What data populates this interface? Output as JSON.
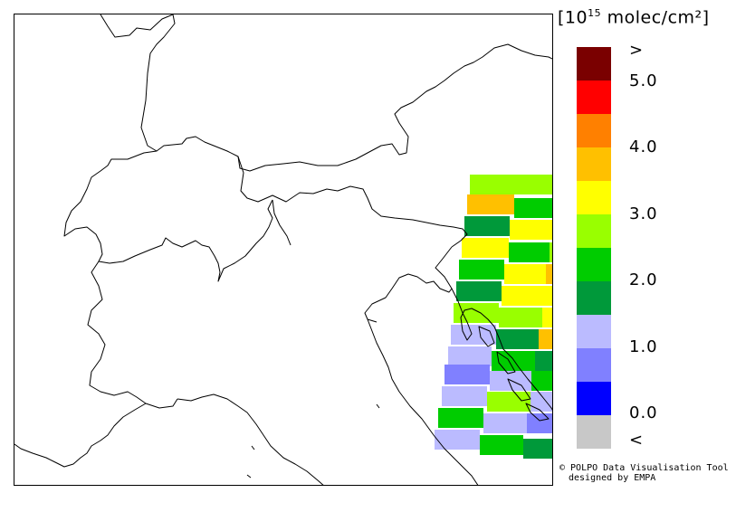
{
  "units": {
    "open": "[10",
    "exponent": "15",
    "rest": " molec/cm²]"
  },
  "legend": {
    "colors": [
      "#7a0000",
      "#ff0000",
      "#ff8000",
      "#ffc000",
      "#ffff00",
      "#99ff00",
      "#00cc00",
      "#00993a",
      "#bbbbff",
      "#8080ff",
      "#0000ff",
      "#c8c8c8"
    ],
    "labels": [
      ">",
      "5.0",
      "4.0",
      "3.0",
      "2.0",
      "1.0",
      "0.0",
      "<"
    ]
  },
  "credit": {
    "line1": "© POLPO Data Visualisation Tool",
    "line2": "designed by EMPA"
  }
}
